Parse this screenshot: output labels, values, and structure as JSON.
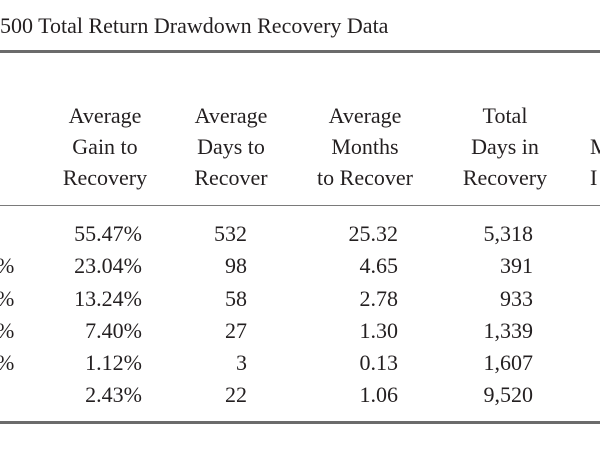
{
  "title": "500 Total Return Drawdown Recovery Data",
  "headers": {
    "gain": [
      "Average",
      "Gain to",
      "Recovery"
    ],
    "days": [
      "Average",
      "Days to",
      "Recover"
    ],
    "months": [
      "Average",
      "Months",
      "to Recover"
    ],
    "total": [
      "Total",
      "Days in",
      "Recovery"
    ],
    "partial": [
      "M",
      "I"
    ]
  },
  "rows": [
    {
      "stub": "",
      "gain": "55.47%",
      "days": "532",
      "months": "25.32",
      "total": "5,318"
    },
    {
      "stub": "%",
      "gain": "23.04%",
      "days": "98",
      "months": "4.65",
      "total": "391"
    },
    {
      "stub": "%",
      "gain": "13.24%",
      "days": "58",
      "months": "2.78",
      "total": "933"
    },
    {
      "stub": "%",
      "gain": "7.40%",
      "days": "27",
      "months": "1.30",
      "total": "1,339"
    },
    {
      "stub": "%",
      "gain": "1.12%",
      "days": "3",
      "months": "0.13",
      "total": "1,607"
    },
    {
      "stub": "",
      "gain": "2.43%",
      "days": "22",
      "months": "1.06",
      "total": "9,520"
    }
  ]
}
